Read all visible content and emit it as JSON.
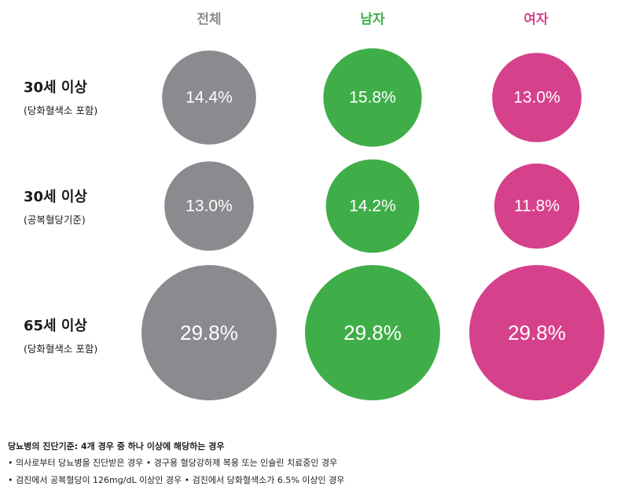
{
  "chart_data": {
    "type": "bubble",
    "categories": [
      "30세 이상 (당화혈색소 포함)",
      "30세 이상 (공복혈당기준)",
      "65세 이상 (당화혈색소 포함)"
    ],
    "series": [
      {
        "name": "전체",
        "values": [
          14.4,
          13.0,
          29.8
        ],
        "color": "#8a8b8f"
      },
      {
        "name": "남자",
        "values": [
          15.8,
          14.2,
          29.8
        ],
        "color": "#3fae49"
      },
      {
        "name": "여자",
        "values": [
          13.0,
          11.8,
          29.8
        ],
        "color": "#d6418b"
      }
    ],
    "value_labels": [
      [
        "14.4%",
        "13.0%",
        "29.8%"
      ],
      [
        "15.8%",
        "14.2%",
        "29.8%"
      ],
      [
        "13.0%",
        "11.8%",
        "29.8%"
      ]
    ],
    "row_labels": [
      {
        "title": "30세 이상",
        "subtitle": "(당화혈색소 포함)"
      },
      {
        "title": "30세 이상",
        "subtitle": "(공복혈당기준)"
      },
      {
        "title": "65세 이상",
        "subtitle": "(당화혈색소 포함)"
      }
    ]
  },
  "footnote": {
    "title": "당뇨병의 진단기준: 4개 경우 중 하나 이상에 해당하는 경우",
    "line1": "• 의사로부터 당뇨병을 진단받은 경우 • 경구용 혈당강하제 복용 또는 인슐린 치료중인 경우",
    "line2": "• 검진에서 공복혈당이 126mg/dL 이상인 경우 • 검진에서 당화혈색소가 6.5% 이상인 경우"
  },
  "colors": {
    "total": "#8a8b8f",
    "male": "#3fae49",
    "female": "#d6418b"
  }
}
